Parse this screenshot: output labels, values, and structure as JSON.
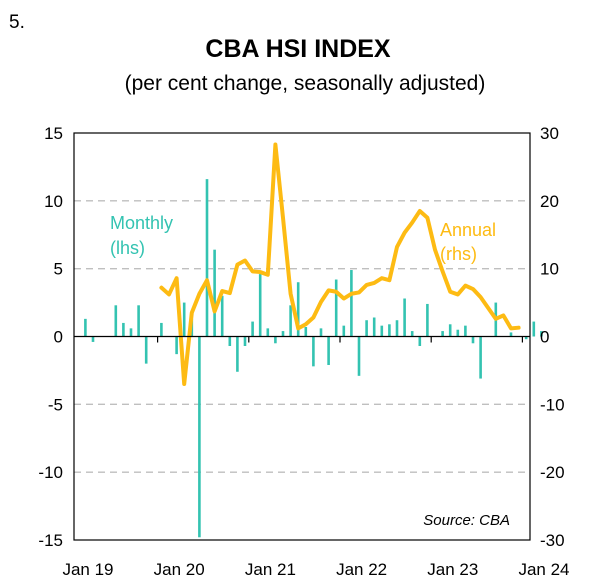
{
  "chart_number": "5.",
  "colors": {
    "monthly": "#33c3b1",
    "annual": "#fdbb13",
    "grid": "#bfbfbf",
    "axis": "#000000"
  },
  "chart_data": {
    "type": "bar+line",
    "title": "CBA HSI INDEX",
    "subtitle": "(per cent change, seasonally adjusted)",
    "source": "Source:  CBA",
    "x_ticks": [
      "Jan 19",
      "Jan 20",
      "Jan 21",
      "Jan 22",
      "Jan 23",
      "Jan 24"
    ],
    "y_left": {
      "lim": [
        -15,
        15
      ],
      "ticks": [
        "15",
        "10",
        "5",
        "0",
        "-5",
        "-10",
        "-15"
      ]
    },
    "y_right": {
      "lim": [
        -30,
        30
      ],
      "ticks": [
        "30",
        "20",
        "10",
        "0",
        "-10",
        "-20",
        "-30"
      ]
    },
    "grid": "horizontal dashed",
    "series": [
      {
        "name": "Monthly",
        "sub": "(lhs)",
        "type": "bar",
        "axis": "left",
        "start": "2019-01",
        "frequency": "monthly",
        "values": [
          0.0,
          1.3,
          -0.4,
          0.0,
          0.0,
          2.3,
          1.0,
          0.6,
          2.3,
          -2.0,
          0.0,
          1.0,
          0.0,
          -1.3,
          2.5,
          1.3,
          -14.8,
          11.6,
          6.4,
          3.0,
          -0.7,
          -2.6,
          -0.7,
          1.1,
          4.6,
          0.6,
          -0.5,
          0.4,
          2.3,
          4.0,
          0.7,
          -2.2,
          0.6,
          -2.1,
          4.2,
          0.8,
          4.9,
          -2.9,
          1.2,
          1.4,
          0.8,
          0.9,
          1.2,
          2.8,
          0.4,
          -0.7,
          2.4,
          0.0,
          0.4,
          0.9,
          0.5,
          0.8,
          -0.5,
          -3.1,
          0.0,
          2.5,
          0.0,
          0.3,
          0.0,
          -0.2,
          1.1,
          0.4
        ]
      },
      {
        "name": "Annual",
        "sub": "(rhs)",
        "type": "line",
        "axis": "right",
        "start": "2019-12",
        "frequency": "monthly",
        "values": [
          7.2,
          6.2,
          8.6,
          -7.0,
          3.5,
          6.3,
          8.3,
          3.7,
          6.7,
          6.4,
          10.6,
          11.2,
          9.6,
          9.5,
          9.1,
          28.3,
          17.5,
          6.3,
          1.2,
          1.8,
          2.8,
          5.1,
          6.8,
          6.6,
          5.6,
          6.3,
          6.5,
          7.6,
          7.9,
          8.6,
          8.3,
          13.2,
          15.3,
          16.8,
          18.5,
          17.5,
          12.8,
          9.6,
          6.6,
          6.2,
          7.5,
          7.0,
          5.8,
          4.2,
          2.6,
          3.1,
          1.2,
          1.3
        ]
      }
    ]
  }
}
